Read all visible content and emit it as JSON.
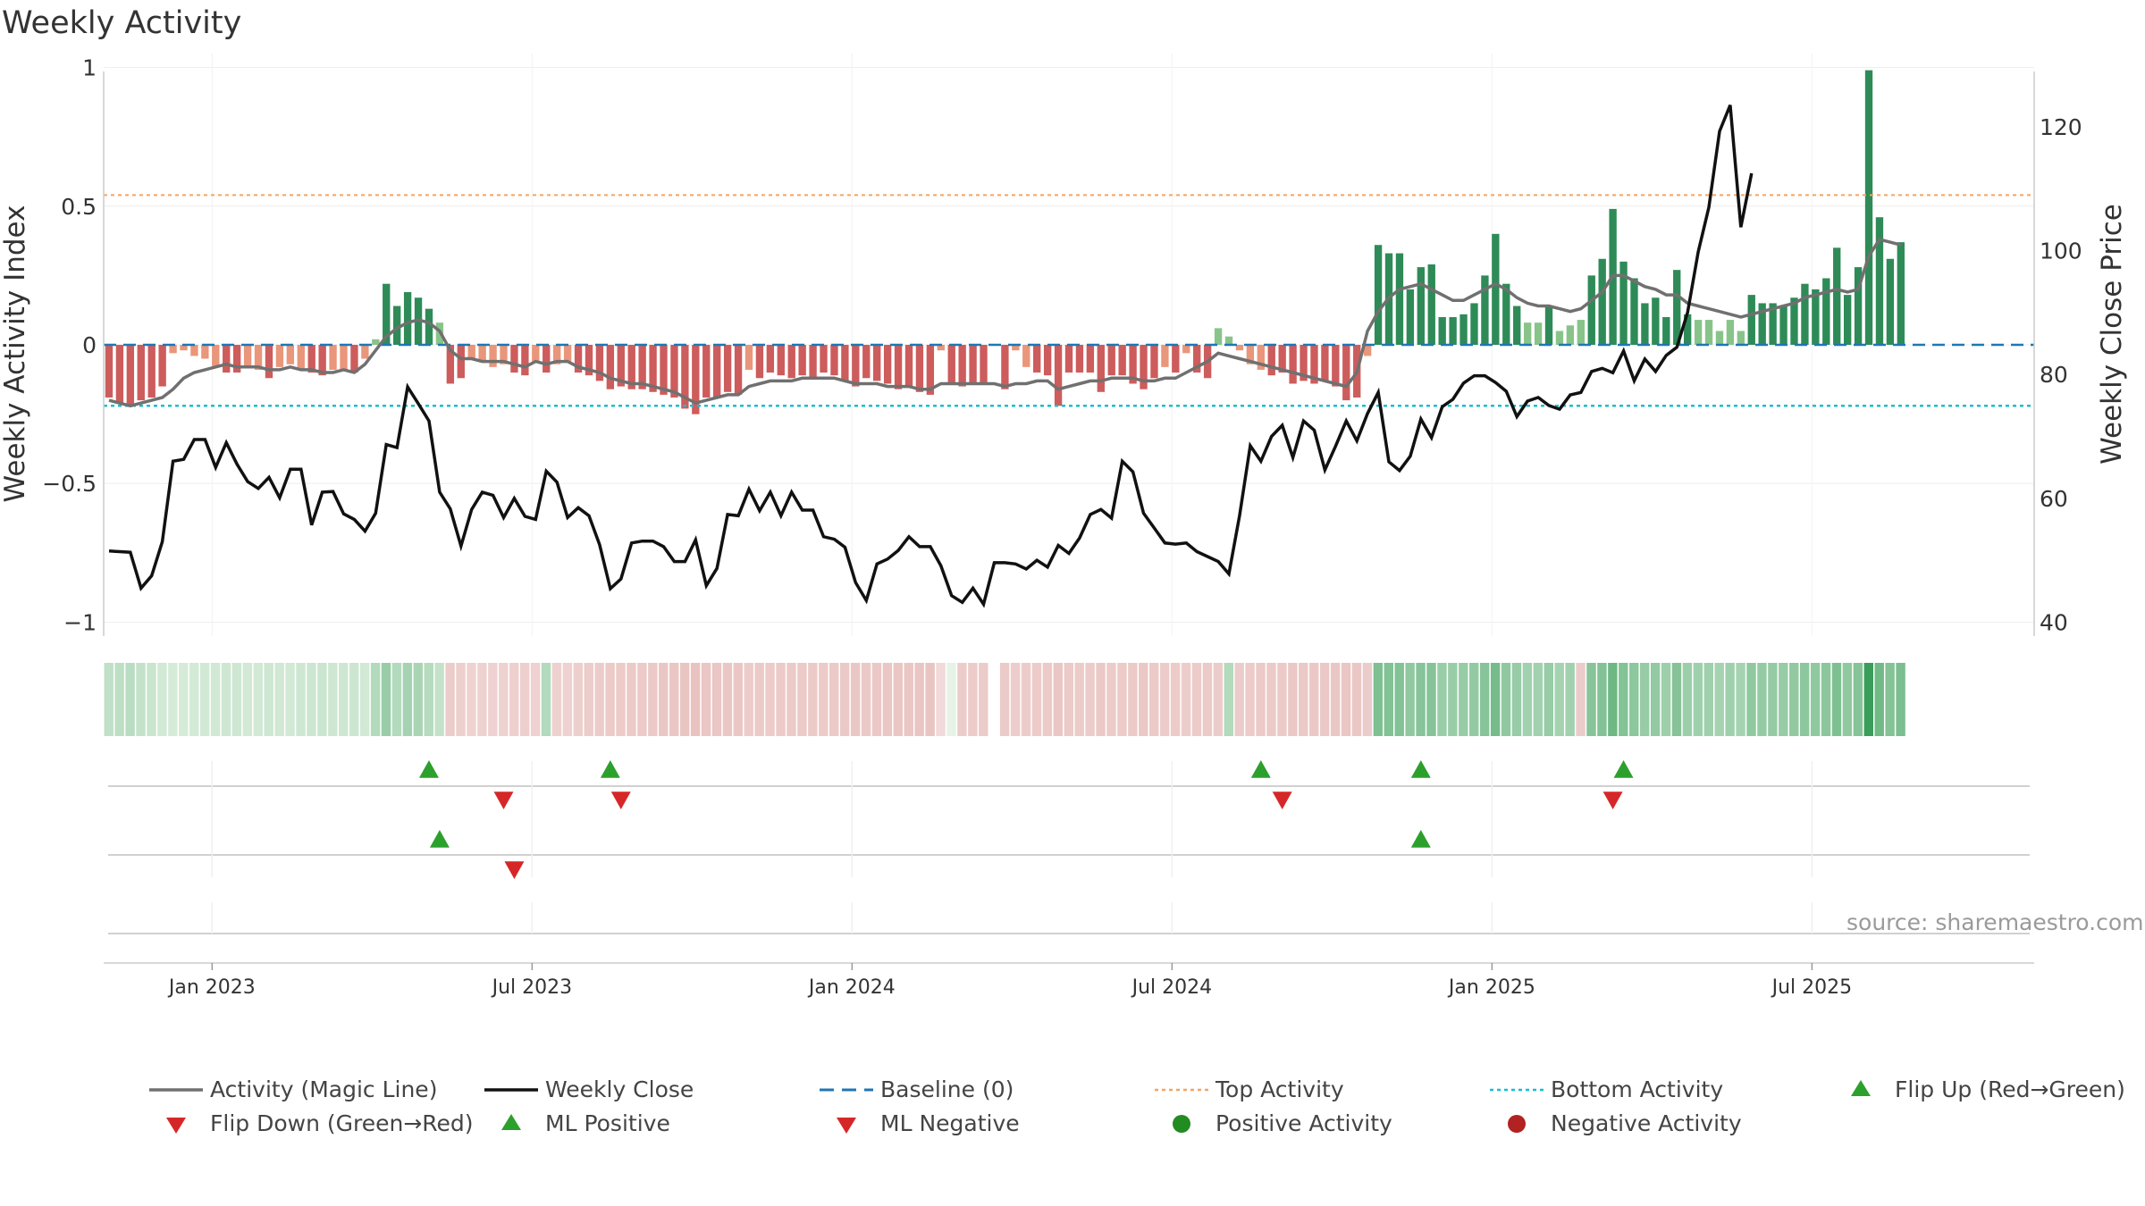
{
  "header": {
    "title": "Weekly Activity"
  },
  "source": "source: sharemaestro.com",
  "colors": {
    "pos_dark": "#2e8b57",
    "pos_light": "#88c48a",
    "neg_dark": "#cd5c5c",
    "neg_light": "#e9967a",
    "magic_line": "#707070",
    "close": "#111111",
    "baseline": "#1f77b4",
    "top": "#f4a460",
    "bottom": "#17becf",
    "up": "#2ca02c",
    "down": "#d62728",
    "pos_dot": "#228b22",
    "neg_dot": "#b22222"
  },
  "legend": [
    {
      "label": "Activity (Magic Line)",
      "icon": "gray-line"
    },
    {
      "label": "Weekly Close",
      "icon": "black-line"
    },
    {
      "label": "Baseline (0)",
      "icon": "blue-dashed-line"
    },
    {
      "label": "Top Activity",
      "icon": "orange-dotted-line"
    },
    {
      "label": "Bottom Activity",
      "icon": "cyan-dotted-line"
    },
    {
      "label": "Flip Up (Red→Green)",
      "icon": "green-up-triangle"
    },
    {
      "label": "Flip Down (Green→Red)",
      "icon": "red-down-triangle"
    },
    {
      "label": "ML Positive",
      "icon": "green-up-triangle"
    },
    {
      "label": "ML Negative",
      "icon": "red-down-triangle"
    },
    {
      "label": "Positive Activity",
      "icon": "green-circle"
    },
    {
      "label": "Negative Activity",
      "icon": "red-circle"
    }
  ],
  "chart_data": {
    "type": "bar",
    "title": "Weekly Activity",
    "ylabel": "Weekly Activity Index",
    "y2label": "Weekly Close Price",
    "ylim": [
      -1.05,
      1.05
    ],
    "y2lim": [
      40,
      125
    ],
    "yticks": [
      1,
      0.5,
      0,
      -0.5,
      -1
    ],
    "ytick_labels": [
      "1",
      "0.5",
      "0",
      "−0.5",
      "−1"
    ],
    "y2ticks": [
      120,
      100,
      80,
      60,
      40
    ],
    "xticks": [
      "Jan 2023",
      "Jul 2023",
      "Jan 2024",
      "Jul 2024",
      "Jan 2025",
      "Jul 2025"
    ],
    "xtick_weeks": [
      10,
      40,
      70,
      100,
      130,
      160
    ],
    "top_activity": 0.54,
    "bottom_activity": -0.22,
    "baseline": 0,
    "grid": true,
    "weeks": 181,
    "activity": [
      -0.19,
      -0.21,
      -0.22,
      -0.2,
      -0.19,
      -0.15,
      -0.03,
      -0.02,
      -0.04,
      -0.05,
      -0.08,
      -0.1,
      -0.1,
      -0.08,
      -0.09,
      -0.12,
      -0.08,
      -0.07,
      -0.09,
      -0.1,
      -0.11,
      -0.09,
      -0.09,
      -0.1,
      -0.05,
      0.02,
      0.22,
      0.14,
      0.19,
      0.17,
      0.13,
      0.08,
      -0.14,
      -0.12,
      -0.05,
      -0.06,
      -0.08,
      -0.07,
      -0.1,
      -0.11,
      -0.06,
      -0.1,
      -0.07,
      -0.06,
      -0.1,
      -0.11,
      -0.13,
      -0.16,
      -0.15,
      -0.16,
      -0.16,
      -0.17,
      -0.18,
      -0.19,
      -0.23,
      -0.25,
      -0.19,
      -0.19,
      -0.17,
      -0.18,
      -0.09,
      -0.12,
      -0.1,
      -0.11,
      -0.12,
      -0.11,
      -0.12,
      -0.1,
      -0.11,
      -0.13,
      -0.15,
      -0.12,
      -0.13,
      -0.14,
      -0.16,
      -0.15,
      -0.17,
      -0.18,
      -0.02,
      -0.14,
      -0.15,
      -0.14,
      -0.14,
      -0.13,
      -0.16,
      -0.02,
      -0.08,
      -0.1,
      -0.11,
      -0.22,
      -0.1,
      -0.1,
      -0.1,
      -0.17,
      -0.11,
      -0.11,
      -0.14,
      -0.16,
      -0.12,
      -0.08,
      -0.1,
      -0.03,
      -0.1,
      -0.12,
      0.06,
      0.03,
      -0.02,
      -0.07,
      -0.09,
      -0.11,
      -0.1,
      -0.14,
      -0.13,
      -0.14,
      -0.13,
      -0.15,
      -0.2,
      -0.19,
      -0.04,
      0.36,
      0.33,
      0.33,
      0.2,
      0.28,
      0.29,
      0.1,
      0.1,
      0.11,
      0.15,
      0.25,
      0.4,
      0.22,
      0.14,
      0.08,
      0.08,
      0.14,
      0.05,
      0.07,
      0.09,
      0.25,
      0.31,
      0.49,
      0.3,
      0.24,
      0.15,
      0.17,
      0.1,
      0.27,
      0.11,
      0.09,
      0.09,
      0.05,
      0.09,
      0.05,
      0.18,
      0.15,
      0.15,
      0.14,
      0.17,
      0.22,
      0.2,
      0.24,
      0.35,
      0.18,
      0.28,
      0.99,
      0.46,
      0.31,
      0.37
    ],
    "magic_line": [
      -0.2,
      -0.21,
      -0.22,
      -0.21,
      -0.2,
      -0.19,
      -0.16,
      -0.12,
      -0.1,
      -0.09,
      -0.08,
      -0.07,
      -0.08,
      -0.08,
      -0.08,
      -0.09,
      -0.09,
      -0.08,
      -0.09,
      -0.09,
      -0.1,
      -0.1,
      -0.09,
      -0.1,
      -0.07,
      -0.02,
      0.03,
      0.06,
      0.08,
      0.09,
      0.08,
      0.05,
      -0.02,
      -0.05,
      -0.05,
      -0.06,
      -0.06,
      -0.06,
      -0.07,
      -0.08,
      -0.06,
      -0.07,
      -0.06,
      -0.06,
      -0.08,
      -0.09,
      -0.1,
      -0.12,
      -0.13,
      -0.14,
      -0.14,
      -0.15,
      -0.16,
      -0.17,
      -0.19,
      -0.21,
      -0.2,
      -0.19,
      -0.18,
      -0.18,
      -0.15,
      -0.14,
      -0.13,
      -0.13,
      -0.13,
      -0.12,
      -0.12,
      -0.12,
      -0.12,
      -0.13,
      -0.14,
      -0.14,
      -0.14,
      -0.15,
      -0.15,
      -0.15,
      -0.16,
      -0.16,
      -0.14,
      -0.14,
      -0.14,
      -0.14,
      -0.14,
      -0.14,
      -0.15,
      -0.14,
      -0.14,
      -0.13,
      -0.13,
      -0.16,
      -0.15,
      -0.14,
      -0.13,
      -0.13,
      -0.12,
      -0.12,
      -0.12,
      -0.13,
      -0.13,
      -0.12,
      -0.12,
      -0.1,
      -0.08,
      -0.06,
      -0.03,
      -0.04,
      -0.05,
      -0.06,
      -0.07,
      -0.08,
      -0.09,
      -0.1,
      -0.11,
      -0.12,
      -0.13,
      -0.14,
      -0.15,
      -0.1,
      0.05,
      0.12,
      0.17,
      0.2,
      0.21,
      0.22,
      0.2,
      0.18,
      0.16,
      0.16,
      0.18,
      0.2,
      0.22,
      0.2,
      0.17,
      0.15,
      0.14,
      0.14,
      0.13,
      0.12,
      0.13,
      0.16,
      0.19,
      0.25,
      0.25,
      0.23,
      0.21,
      0.2,
      0.18,
      0.18,
      0.15,
      0.14,
      0.13,
      0.12,
      0.11,
      0.1,
      0.11,
      0.12,
      0.13,
      0.14,
      0.15,
      0.17,
      0.18,
      0.19,
      0.2,
      0.19,
      0.2,
      0.32,
      0.38,
      0.37,
      0.36
    ],
    "weekly_close": [
      51.5,
      51.4,
      51.3,
      45.5,
      47.5,
      53,
      66,
      66.3,
      69.5,
      69.5,
      65,
      69,
      65.5,
      62.7,
      61.6,
      63.4,
      60.1,
      64.7,
      64.7,
      55.7,
      61,
      61.1,
      57.5,
      56.6,
      54.7,
      57.6,
      68.7,
      68.2,
      78,
      75.3,
      72.5,
      61,
      58.3,
      52.3,
      58.2,
      61,
      60.5,
      56.9,
      60,
      57.1,
      56.6,
      64.4,
      62.6,
      56.9,
      58.5,
      57.2,
      52.5,
      45.4,
      47,
      52.8,
      53.1,
      53.1,
      52.2,
      49.8,
      49.8,
      53.3,
      45.9,
      48.7,
      57.4,
      57.2,
      61.5,
      58,
      61,
      57.2,
      61,
      58.1,
      58.1,
      53.8,
      53.4,
      52.1,
      46.4,
      43.5,
      49.4,
      50.2,
      51.6,
      53.8,
      52.2,
      52.2,
      49.1,
      44.3,
      43.2,
      45.5,
      42.9,
      49.6,
      49.6,
      49.4,
      48.6,
      50,
      48.9,
      52.4,
      51.1,
      53.6,
      57.4,
      58.2,
      56.8,
      66,
      64.3,
      57.6,
      55.2,
      52.8,
      52.6,
      52.8,
      51.4,
      50.6,
      49.8,
      47.8,
      57.2,
      68.5,
      66,
      70,
      71.8,
      66.6,
      72.5,
      71,
      64.6,
      68.4,
      72.5,
      69.3,
      73.7,
      77.1,
      65.9,
      64.5,
      66.8,
      72.8,
      69.8,
      74.8,
      76,
      78.6,
      79.8,
      79.8,
      78.7,
      77.3,
      73.2,
      75.7,
      76.3,
      75,
      74.4,
      76.7,
      77.1,
      80.5,
      81,
      80.3,
      83.8,
      79,
      82.5,
      80.5,
      83.1,
      84.4,
      90,
      99.8,
      107,
      119.3,
      123.5,
      103.8,
      112.5
    ],
    "heat_strip": [
      0.22,
      0.24,
      0.26,
      0.2,
      0.17,
      0.12,
      0.1,
      0.1,
      0.11,
      0.12,
      0.13,
      0.14,
      0.14,
      0.12,
      0.12,
      0.14,
      0.13,
      0.12,
      0.14,
      0.15,
      0.16,
      0.14,
      0.14,
      0.15,
      0.12,
      0.3,
      0.45,
      0.3,
      0.38,
      0.35,
      0.28,
      0.2,
      -0.3,
      -0.26,
      -0.2,
      -0.21,
      -0.22,
      -0.21,
      -0.24,
      -0.26,
      -0.22,
      0.3,
      -0.24,
      -0.22,
      -0.26,
      -0.28,
      -0.3,
      -0.32,
      -0.31,
      -0.32,
      -0.32,
      -0.34,
      -0.36,
      -0.38,
      -0.4,
      -0.42,
      -0.38,
      -0.38,
      -0.36,
      -0.37,
      -0.3,
      -0.33,
      -0.31,
      -0.32,
      -0.33,
      -0.32,
      -0.33,
      -0.31,
      -0.32,
      -0.34,
      -0.36,
      -0.34,
      -0.35,
      -0.36,
      -0.38,
      -0.37,
      -0.39,
      -0.4,
      -0.1,
      0.0,
      -0.3,
      -0.31,
      -0.3,
      -0.3,
      -0.32,
      -0.28,
      -0.3,
      -0.31,
      -0.32,
      -0.38,
      -0.32,
      -0.31,
      -0.3,
      -0.34,
      -0.31,
      -0.31,
      -0.33,
      -0.35,
      -0.33,
      -0.3,
      -0.31,
      -0.28,
      -0.31,
      -0.33,
      -0.3,
      0.3,
      -0.3,
      -0.31,
      -0.32,
      -0.33,
      -0.32,
      -0.35,
      -0.34,
      -0.35,
      -0.34,
      -0.36,
      -0.38,
      -0.37,
      -0.3,
      0.6,
      0.58,
      0.58,
      0.5,
      0.55,
      0.56,
      0.45,
      0.45,
      0.46,
      0.48,
      0.55,
      0.65,
      0.5,
      0.46,
      0.4,
      0.4,
      0.46,
      0.38,
      0.4,
      -0.3,
      0.55,
      0.58,
      0.7,
      0.57,
      0.52,
      0.46,
      0.48,
      0.42,
      0.56,
      0.43,
      0.41,
      0.41,
      0.38,
      0.41,
      0.38,
      0.5,
      0.47,
      0.47,
      0.46,
      0.49,
      0.52,
      0.5,
      0.53,
      0.6,
      0.5,
      0.56,
      1.0,
      0.68,
      0.57,
      0.62
    ],
    "flip_up_weeks": [
      30,
      47,
      108,
      123,
      142
    ],
    "flip_down_weeks": [
      37,
      48,
      110,
      141
    ],
    "ml_positive_weeks": [
      31,
      123
    ],
    "ml_negative_weeks": [
      38
    ],
    "gap_weeks": [
      83
    ]
  }
}
